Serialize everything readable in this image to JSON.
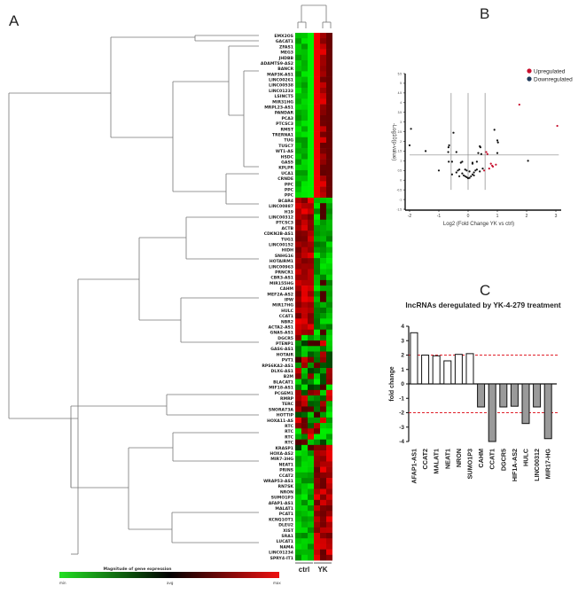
{
  "panels": {
    "a": {
      "label": "A",
      "colorbar": {
        "title": "Magnitude of gene expression",
        "min_label": "min",
        "avg_label": "avg",
        "max_label": "max",
        "colors": [
          "#22e022",
          "#000000",
          "#ee1111"
        ]
      },
      "group_labels": [
        "ctrl",
        "YK"
      ],
      "genes": [
        "EMX2OS",
        "GACAT1",
        "ZFAS1",
        "MEG3",
        "JHDBB",
        "ADAMTS9-AS2",
        "BANCR",
        "MAP3K-AS1",
        "LINC00261",
        "LINC00538",
        "LINC01233",
        "LSINCT5",
        "MIR31HG",
        "MRPL23-AS1",
        "PANDAR",
        "PCA3",
        "PTCSC3",
        "RMST",
        "TRERNA1",
        "TUG",
        "TUSC7",
        "WT1-AS",
        "HSDC",
        "GAS5",
        "KPLPR",
        "UCA1",
        "CRNDE",
        "PPC",
        "PPC",
        "PPC",
        "BCAR4",
        "LINC00887",
        "H19",
        "LINC00312",
        "PTCSC3",
        "ACTB",
        "CDKN2B-AS1",
        "TUG1",
        "LINC00152",
        "HIDH",
        "SNHG16",
        "HOTAIRM1",
        "LINC00963",
        "PRNCR1",
        "CBR3-AS1",
        "MIR155HG",
        "CAHM",
        "MEF2A-AS2",
        "IPW",
        "MIR17HG",
        "HULC",
        "CCAT1",
        "NBR2",
        "ACTA2-AS1",
        "GNAS-AS1",
        "DGCR5",
        "PTENP1",
        "GAS6-AS1",
        "HOTAIR",
        "PVT1",
        "RPS6KA2-AS1",
        "DLX6-AS1",
        "B2M",
        "BLACAT1",
        "MIF18-AS1",
        "PCGEM1",
        "RMRP",
        "TERC",
        "SNORA73A",
        "HOTTIP",
        "HOXA11-AS",
        "RTC",
        "RTC",
        "RTC",
        "RTC",
        "KRASP1",
        "HOXA-AS2",
        "MIR7-3HG",
        "NEAT1",
        "PRINS",
        "CCAT2",
        "WRAP53-AS1",
        "RN7SK",
        "NRON",
        "SUMO1P3",
        "AFAP1-AS1",
        "MALAT1",
        "PCAT1",
        "KCNQ1OT1",
        "DLEU2",
        "XIST",
        "SRA1",
        "LUCAT1",
        "NAMA",
        "LINC01234",
        "SPRY4-IT1"
      ],
      "heatmap_values": []
    },
    "b": {
      "label": "B"
    },
    "c": {
      "label": "C"
    }
  },
  "chart_data": [
    {
      "type": "scatter",
      "panel": "B",
      "title": "",
      "xlabel": "Log2 (Fold Change YK vs ctrl)",
      "ylabel": "-Log10(p-value)",
      "xlim": [
        -2,
        3
      ],
      "ylim": [
        -1.5,
        5.5
      ],
      "xticks": [
        "-2",
        "-1",
        "0",
        "1",
        "2",
        "3"
      ],
      "yticks": [
        "5.5",
        "5",
        "4.5",
        "4",
        "3.5",
        "3",
        "2.5",
        "2",
        "1.5",
        "1",
        "0.5",
        "0",
        "-0.5",
        "-1",
        "-1.5"
      ],
      "ytick_values": [
        5.5,
        5,
        4.5,
        4,
        3.5,
        3,
        2.5,
        2,
        1.5,
        1,
        0.5,
        0,
        -0.5,
        -1,
        -1.5
      ],
      "xtick_values": [
        -2,
        -1,
        0,
        1,
        2,
        3
      ],
      "threshold_lines": {
        "x": [
          -0.58,
          0,
          0.58
        ],
        "y": 1.3
      },
      "legend": [
        {
          "label": "Upregulated",
          "color": "#c8102e"
        },
        {
          "label": "Downregulated",
          "color": "#1f3a5a"
        }
      ],
      "legend_position": "top-right",
      "series": [
        {
          "name": "Upregulated",
          "color": "#c8102e",
          "points": [
            [
              1.75,
              3.9
            ],
            [
              3.05,
              2.8
            ],
            [
              0.62,
              1.45
            ],
            [
              0.66,
              1.35
            ],
            [
              0.78,
              0.85
            ],
            [
              0.82,
              0.75
            ],
            [
              0.85,
              0.7
            ],
            [
              0.95,
              0.8
            ],
            [
              0.72,
              0.6
            ],
            [
              0.55,
              0.5
            ]
          ]
        },
        {
          "name": "Downregulated",
          "color": "#1f3a5a",
          "points": [
            [
              -1.95,
              2.65
            ],
            [
              -2.0,
              1.8
            ],
            [
              -1.45,
              1.5
            ],
            [
              -1.0,
              0.5
            ],
            [
              -0.65,
              1.8
            ],
            [
              -0.67,
              1.7
            ],
            [
              -0.68,
              1.45
            ],
            [
              -0.66,
              0.95
            ],
            [
              -0.55,
              0.95
            ],
            [
              -0.5,
              2.45
            ],
            [
              -0.4,
              1.45
            ],
            [
              -0.55,
              0.3
            ],
            [
              -0.2,
              0.95
            ],
            [
              -0.25,
              0.9
            ],
            [
              -0.3,
              0.55
            ],
            [
              -0.35,
              0.5
            ],
            [
              -0.4,
              0.4
            ],
            [
              -0.2,
              0.35
            ],
            [
              -0.15,
              0.25
            ],
            [
              -0.1,
              0.2
            ],
            [
              -0.05,
              0.15
            ],
            [
              0.0,
              0.1
            ],
            [
              0.05,
              0.12
            ],
            [
              0.1,
              0.2
            ],
            [
              0.15,
              0.3
            ],
            [
              0.2,
              0.4
            ],
            [
              0.25,
              0.5
            ],
            [
              0.3,
              0.55
            ],
            [
              0.15,
              0.9
            ],
            [
              0.15,
              0.85
            ],
            [
              0.3,
              0.95
            ],
            [
              0.4,
              1.75
            ],
            [
              0.42,
              1.7
            ],
            [
              0.35,
              1.4
            ],
            [
              0.45,
              1.35
            ],
            [
              0.5,
              0.6
            ],
            [
              0.4,
              0.45
            ],
            [
              0.9,
              2.6
            ],
            [
              1.0,
              2.05
            ],
            [
              1.02,
              1.95
            ],
            [
              1.0,
              1.4
            ],
            [
              2.05,
              1.0
            ],
            [
              -0.1,
              0.55
            ],
            [
              -0.05,
              0.5
            ],
            [
              0.05,
              0.45
            ],
            [
              -0.3,
              0.2
            ],
            [
              0.2,
              0.25
            ]
          ]
        }
      ]
    },
    {
      "type": "bar",
      "panel": "C",
      "title": "lncRNAs deregulated by YK-4-279 treatment",
      "xlabel": "",
      "ylabel": "fold change",
      "ylim": [
        -4,
        4
      ],
      "yticks": [
        "4",
        "3",
        "2",
        "1",
        "0",
        "-1",
        "-2",
        "-3",
        "-4"
      ],
      "ytick_values": [
        4,
        3,
        2,
        1,
        0,
        -1,
        -2,
        -3,
        -4
      ],
      "threshold_lines": [
        2,
        -2
      ],
      "categories": [
        "AFAP1-AS1",
        "CCAT2",
        "MALAT1",
        "NEAT1",
        "NRON",
        "SUMO1P3",
        "CAHM",
        "CCAT1",
        "DGCR5",
        "HIF1A-AS2",
        "HULC",
        "LINC00312",
        "MIR17-HG"
      ],
      "values": [
        3.55,
        2.0,
        1.95,
        1.6,
        2.05,
        2.1,
        -1.6,
        -4.0,
        -1.6,
        -1.55,
        -2.75,
        -1.6,
        -3.8
      ],
      "colors": {
        "up": "#ffffff",
        "down": "#9a9a9a",
        "threshold": "#e0202a"
      }
    }
  ]
}
